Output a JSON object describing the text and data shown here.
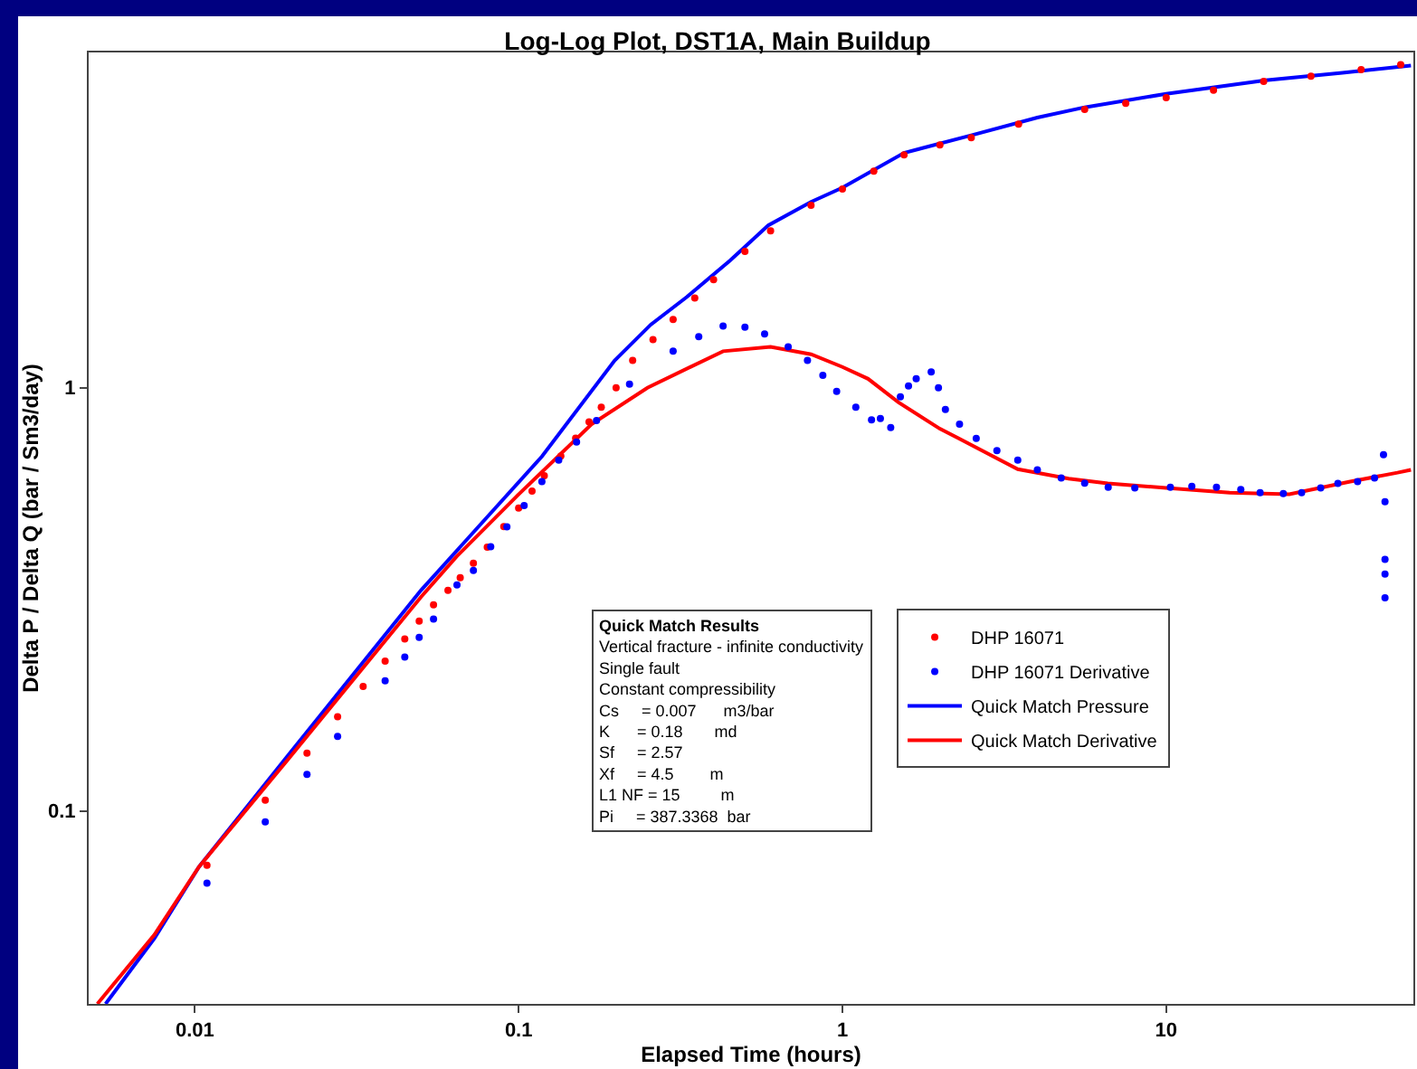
{
  "chart_data": {
    "type": "line",
    "title": "Log-Log Plot, DST1A, Main Buildup",
    "xlabel": "Elapsed Time (hours)",
    "ylabel": "Delta P / Delta Q (bar / Sm3/day)",
    "log": "xy",
    "grid": false,
    "legend": "right",
    "xlim": [
      0.0047,
      58
    ],
    "ylim": [
      0.035,
      6.2
    ],
    "xticks": [
      0.01,
      0.1,
      1,
      10
    ],
    "yticks": [
      0.1,
      1
    ],
    "annotations": [
      "Quick Match Results",
      "Vertical fracture - infinite conductivity",
      "Single fault",
      "Constant compressibility",
      "Cs     = 0.007      m3/bar",
      "K      = 0.18       md",
      "Sf     = 2.57",
      "Xf     = 4.5        m",
      "L1 NF = 15         m",
      "Pi     = 387.3368  bar"
    ],
    "series": [
      {
        "name": "DHP 16071",
        "type": "scatter",
        "marker": "circle",
        "color": "#ff0000",
        "x": [
          0.0109,
          0.0165,
          0.0222,
          0.0276,
          0.0331,
          0.0387,
          0.0445,
          0.0493,
          0.0546,
          0.0605,
          0.066,
          0.0725,
          0.08,
          0.09,
          0.1,
          0.11,
          0.12,
          0.135,
          0.15,
          0.165,
          0.18,
          0.2,
          0.225,
          0.26,
          0.3,
          0.35,
          0.4,
          0.5,
          0.6,
          0.8,
          1,
          1.25,
          1.55,
          2,
          2.5,
          3.5,
          5.6,
          7.5,
          10,
          14,
          20,
          28,
          40,
          53
        ],
        "values": [
          0.0744,
          0.106,
          0.137,
          0.167,
          0.197,
          0.226,
          0.255,
          0.281,
          0.307,
          0.332,
          0.356,
          0.385,
          0.42,
          0.47,
          0.52,
          0.57,
          0.62,
          0.69,
          0.76,
          0.83,
          0.9,
          1.0,
          1.16,
          1.3,
          1.45,
          1.63,
          1.8,
          2.1,
          2.35,
          2.7,
          2.95,
          3.25,
          3.55,
          3.75,
          3.9,
          4.2,
          4.55,
          4.7,
          4.85,
          5.05,
          5.3,
          5.45,
          5.65,
          5.8
        ]
      },
      {
        "name": "DHP 16071 Derivative",
        "type": "scatter",
        "marker": "circle",
        "color": "#0000ff",
        "x": [
          0.0109,
          0.0165,
          0.0222,
          0.0276,
          0.0387,
          0.0445,
          0.0493,
          0.0546,
          0.0645,
          0.0725,
          0.082,
          0.092,
          0.104,
          0.118,
          0.133,
          0.151,
          0.174,
          0.22,
          0.3,
          0.36,
          0.428,
          0.5,
          0.575,
          0.68,
          0.78,
          0.87,
          0.96,
          1.1,
          1.23,
          1.31,
          1.41,
          1.51,
          1.6,
          1.69,
          1.88,
          1.98,
          2.08,
          2.3,
          2.59,
          3.0,
          3.48,
          4.0,
          4.74,
          5.6,
          6.62,
          8,
          10.3,
          12,
          14.3,
          17,
          19.5,
          23,
          26.2,
          30,
          33.9,
          39,
          44,
          46.9,
          47.4,
          47.4,
          47.4,
          47.4
        ],
        "values": [
          0.0675,
          0.0942,
          0.122,
          0.15,
          0.203,
          0.231,
          0.257,
          0.284,
          0.342,
          0.37,
          0.421,
          0.469,
          0.527,
          0.6,
          0.675,
          0.744,
          0.837,
          1.02,
          1.22,
          1.32,
          1.4,
          1.39,
          1.34,
          1.25,
          1.16,
          1.07,
          0.98,
          0.9,
          0.84,
          0.846,
          0.805,
          0.952,
          1.01,
          1.05,
          1.09,
          1.0,
          0.889,
          0.82,
          0.759,
          0.71,
          0.675,
          0.64,
          0.612,
          0.595,
          0.582,
          0.58,
          0.582,
          0.585,
          0.582,
          0.575,
          0.565,
          0.562,
          0.565,
          0.58,
          0.594,
          0.6,
          0.612,
          0.695,
          0.538,
          0.393,
          0.363,
          0.319
        ]
      },
      {
        "name": "Quick Match Pressure",
        "marker": "none",
        "color": "#0000ff",
        "x": [
          0.0053,
          0.0075,
          0.0103,
          0.0195,
          0.0499,
          0.118,
          0.198,
          0.256,
          0.331,
          0.45,
          0.59,
          0.8,
          1.0,
          1.55,
          2.5,
          4,
          5.6,
          10,
          20.3,
          35,
          57
        ],
        "values": [
          0.035,
          0.05,
          0.0738,
          0.136,
          0.332,
          0.688,
          1.16,
          1.41,
          1.64,
          2.0,
          2.42,
          2.75,
          2.97,
          3.59,
          3.95,
          4.35,
          4.6,
          4.95,
          5.33,
          5.55,
          5.77
        ]
      },
      {
        "name": "Quick Match Derivative",
        "marker": "none",
        "color": "#ff0000",
        "x": [
          0.005,
          0.0075,
          0.0103,
          0.0195,
          0.0499,
          0.0645,
          0.1,
          0.168,
          0.25,
          0.428,
          0.6,
          0.8,
          1.0,
          1.2,
          1.49,
          2.0,
          2.28,
          3.48,
          5,
          6.6,
          10,
          15.7,
          24,
          37,
          51.8,
          57
        ],
        "values": [
          0.035,
          0.051,
          0.0738,
          0.133,
          0.32,
          0.4,
          0.56,
          0.82,
          1.0,
          1.22,
          1.25,
          1.2,
          1.12,
          1.05,
          0.924,
          0.8,
          0.76,
          0.642,
          0.61,
          0.594,
          0.58,
          0.565,
          0.56,
          0.6,
          0.63,
          0.64
        ]
      }
    ]
  }
}
